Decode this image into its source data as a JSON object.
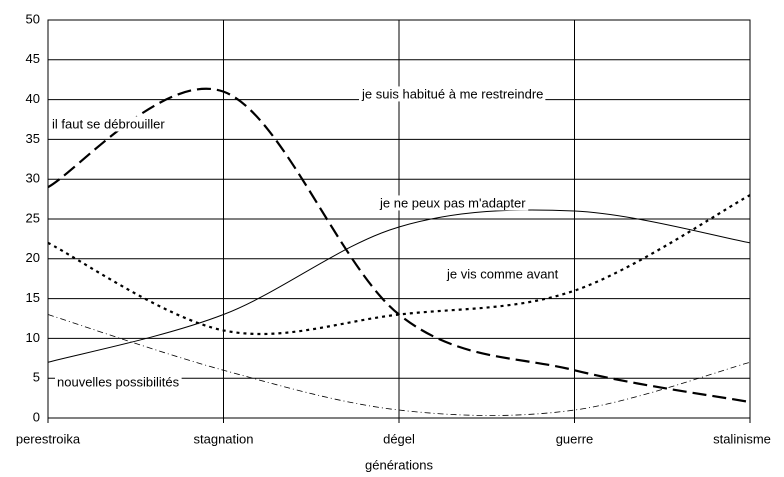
{
  "chart_data": {
    "type": "line",
    "x_label": "générations",
    "categories": [
      "perestroika",
      "stagnation",
      "dégel",
      "guerre",
      "stalinisme"
    ],
    "series": [
      {
        "name": "il faut se débrouiller",
        "color": "#000000",
        "values": [
          29,
          41,
          13,
          6,
          2
        ]
      },
      {
        "name": "je ne peux pas m'adapter",
        "color": "#000000",
        "values": [
          7,
          13,
          24,
          26,
          22
        ]
      },
      {
        "name": "je vis comme avant",
        "color": "#000000",
        "values": [
          22,
          11,
          13,
          16,
          28
        ]
      },
      {
        "name": "nouvelles possibilités",
        "color": "#000000",
        "values": [
          13,
          6,
          1,
          1,
          7
        ]
      }
    ],
    "annotations": [
      "je suis habitué à me restreindre"
    ],
    "ylim": [
      0,
      50
    ],
    "yticks": [
      0,
      5,
      10,
      15,
      20,
      25,
      30,
      35,
      40,
      45,
      50
    ],
    "grid": true
  }
}
